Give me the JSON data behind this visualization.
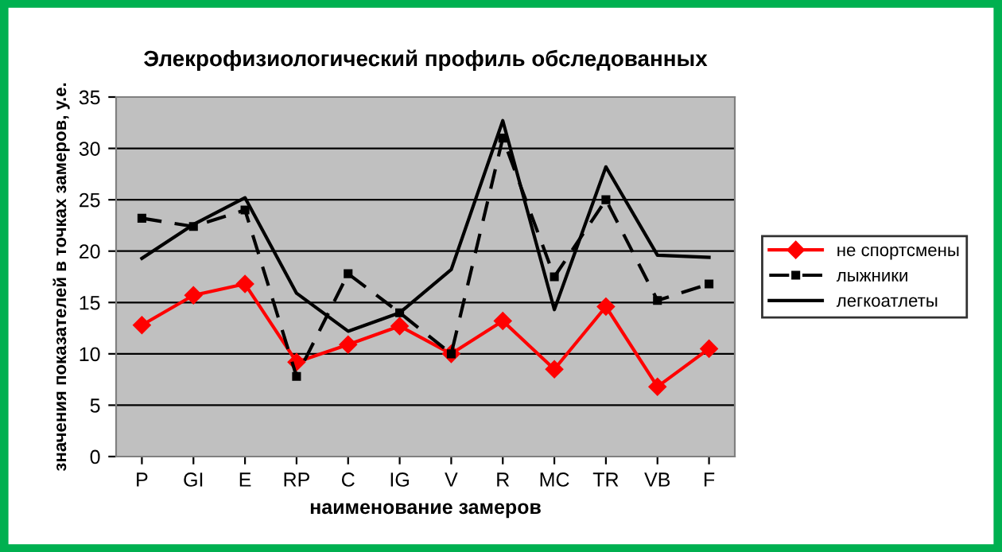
{
  "chart_data": {
    "type": "line",
    "title": "Элекрофизиологический профиль обследованных",
    "xlabel": "наименование замеров",
    "ylabel": "значения показателей в точках замеров, у.е.",
    "categories": [
      "P",
      "GI",
      "E",
      "RP",
      "C",
      "IG",
      "V",
      "R",
      "MC",
      "TR",
      "VB",
      "F"
    ],
    "series": [
      {
        "name": "не спортсмены",
        "color": "#ff0000",
        "marker": "diamond",
        "line_style": "solid",
        "values": [
          12.8,
          15.7,
          16.8,
          9.2,
          10.9,
          12.7,
          10.0,
          13.2,
          8.5,
          14.6,
          6.8,
          10.5
        ]
      },
      {
        "name": "лыжники",
        "color": "#000000",
        "marker": "square",
        "line_style": "dashed",
        "values": [
          23.2,
          22.4,
          24.0,
          7.8,
          17.8,
          14.0,
          10.0,
          31.0,
          17.5,
          25.0,
          15.2,
          16.8
        ]
      },
      {
        "name": "легкоатлеты",
        "color": "#000000",
        "marker": "none",
        "line_style": "solid",
        "values": [
          19.3,
          22.6,
          25.2,
          15.9,
          12.2,
          14.0,
          18.2,
          32.7,
          14.3,
          28.2,
          19.6,
          19.4
        ]
      }
    ],
    "ylim": [
      0,
      35
    ],
    "yticks": [
      0,
      5,
      10,
      15,
      20,
      25,
      30,
      35
    ],
    "grid": "y",
    "legend": "right"
  }
}
